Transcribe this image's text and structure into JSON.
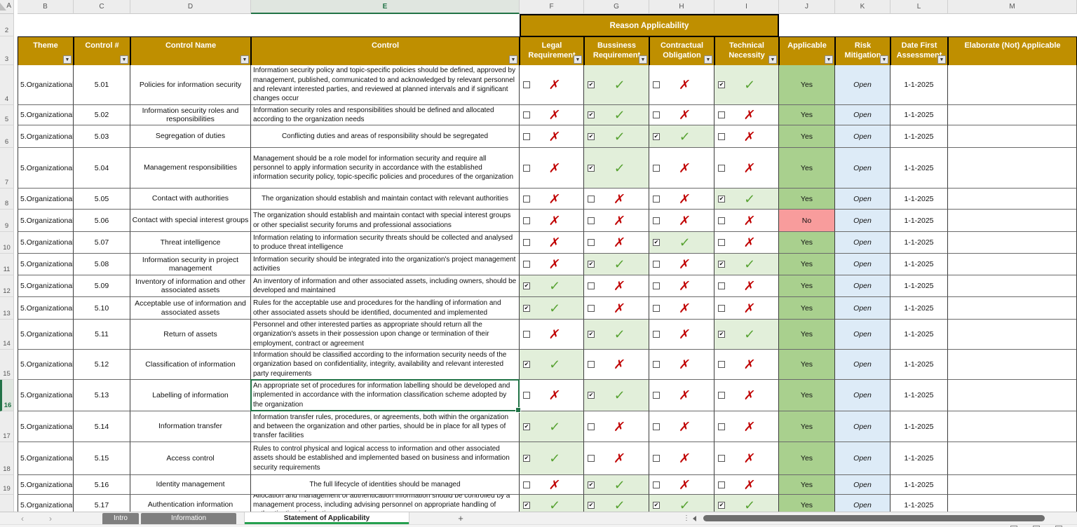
{
  "colors": {
    "header_gold": "#BF8F00",
    "checked_cell_green": "#E2EFDA",
    "applicable_yes_green": "#A9D08E",
    "applicable_no_red": "#F89C9C",
    "risk_blue": "#DDEBF7",
    "check_mark_green": "#55A12F",
    "cross_mark_red": "#C00000",
    "excel_green": "#217346",
    "active_tab_underline": "#26A04F"
  },
  "columns": [
    "A",
    "B",
    "C",
    "D",
    "E",
    "F",
    "G",
    "H",
    "I",
    "J",
    "K",
    "L",
    "M"
  ],
  "visible_row_numbers": [
    2,
    3,
    4,
    5,
    6,
    7,
    8,
    9,
    10,
    11,
    12,
    13,
    14,
    15,
    16,
    17,
    18,
    19
  ],
  "selection": {
    "column": "E",
    "row": 16
  },
  "table": {
    "group_header": "Reason Applicability",
    "headers": [
      {
        "id": "theme",
        "col": "B",
        "lines": [
          "Theme"
        ],
        "filter": true
      },
      {
        "id": "control_no",
        "col": "C",
        "lines": [
          "Control #"
        ],
        "filter": true
      },
      {
        "id": "control_name",
        "col": "D",
        "lines": [
          "Control Name"
        ],
        "filter": true
      },
      {
        "id": "control",
        "col": "E",
        "lines": [
          "Control"
        ],
        "filter": true
      },
      {
        "id": "legal",
        "col": "F",
        "lines": [
          "Legal",
          "Requirement"
        ],
        "filter": true
      },
      {
        "id": "business",
        "col": "G",
        "lines": [
          "Bussiness",
          "Requirement"
        ],
        "filter": true
      },
      {
        "id": "contractual",
        "col": "H",
        "lines": [
          "Contractual",
          "Obligation"
        ],
        "filter": true
      },
      {
        "id": "technical",
        "col": "I",
        "lines": [
          "Technical",
          "Necessity"
        ],
        "filter": true
      },
      {
        "id": "applicable",
        "col": "J",
        "lines": [
          "Applicable"
        ],
        "filter": true
      },
      {
        "id": "risk",
        "col": "K",
        "lines": [
          "Risk",
          "Mitigation"
        ],
        "filter": true
      },
      {
        "id": "date",
        "col": "L",
        "lines": [
          "Date First",
          "Assessment"
        ],
        "filter": true
      },
      {
        "id": "elaborate",
        "col": "M",
        "lines": [
          "Elaborate (Not) Applicable"
        ],
        "filter": false
      }
    ],
    "rows": [
      {
        "row": 4,
        "theme": "5.Organizational",
        "control_no": "5.01",
        "name": "Policies for information security",
        "control": "Information security policy and topic-specific policies should be defined, approved by management, published, communicated to and acknowledged by relevant personnel and relevant interested parties, and reviewed at planned intervals and if significant changes occur",
        "legal": false,
        "business": true,
        "contractual": false,
        "technical": true,
        "applicable": "Yes",
        "risk": "Open",
        "date": "1-1-2025",
        "elaborate": ""
      },
      {
        "row": 5,
        "theme": "5.Organizational",
        "control_no": "5.02",
        "name": "Information security roles and responsibilities",
        "control": "Information security roles and responsibilities should be defined and allocated according to the organization needs",
        "legal": false,
        "business": true,
        "contractual": false,
        "technical": false,
        "applicable": "Yes",
        "risk": "Open",
        "date": "1-1-2025",
        "elaborate": ""
      },
      {
        "row": 6,
        "theme": "5.Organizational",
        "control_no": "5.03",
        "name": "Segregation of duties",
        "control": "Conflicting duties and areas of responsibility should be segregated",
        "legal": false,
        "business": true,
        "contractual": true,
        "technical": false,
        "applicable": "Yes",
        "risk": "Open",
        "date": "1-1-2025",
        "elaborate": ""
      },
      {
        "row": 7,
        "theme": "5.Organizational",
        "control_no": "5.04",
        "name": "Management responsibilities",
        "control": "Management should be a role model for information security and require all personnel to apply information security in accordance with the established information security policy, topic-specific policies and procedures of the organization",
        "legal": false,
        "business": true,
        "contractual": false,
        "technical": false,
        "applicable": "Yes",
        "risk": "Open",
        "date": "1-1-2025",
        "elaborate": ""
      },
      {
        "row": 8,
        "theme": "5.Organizational",
        "control_no": "5.05",
        "name": "Contact with authorities",
        "control": "The organization should establish and maintain contact with relevant authorities",
        "legal": false,
        "business": false,
        "contractual": false,
        "technical": true,
        "applicable": "Yes",
        "risk": "Open",
        "date": "1-1-2025",
        "elaborate": ""
      },
      {
        "row": 9,
        "theme": "5.Organizational",
        "control_no": "5.06",
        "name": "Contact with special interest groups",
        "control": "The organization should establish and maintain contact with special interest groups or other specialist security forums and professional associations",
        "legal": false,
        "business": false,
        "contractual": false,
        "technical": false,
        "applicable": "No",
        "risk": "Open",
        "date": "1-1-2025",
        "elaborate": ""
      },
      {
        "row": 10,
        "theme": "5.Organizational",
        "control_no": "5.07",
        "name": "Threat intelligence",
        "control": "Information relating to information security threats should be collected and analysed to produce threat intelligence",
        "legal": false,
        "business": false,
        "contractual": true,
        "technical": false,
        "applicable": "Yes",
        "risk": "Open",
        "date": "1-1-2025",
        "elaborate": ""
      },
      {
        "row": 11,
        "theme": "5.Organizational",
        "control_no": "5.08",
        "name": "Information security in project management",
        "control": "Information security should be integrated into the organization's project management activities",
        "legal": false,
        "business": true,
        "contractual": false,
        "technical": true,
        "applicable": "Yes",
        "risk": "Open",
        "date": "1-1-2025",
        "elaborate": ""
      },
      {
        "row": 12,
        "theme": "5.Organizational",
        "control_no": "5.09",
        "name": "Inventory of information and other associated assets",
        "control": "An inventory of information and other associated assets, including owners, should be developed and maintained",
        "legal": true,
        "business": false,
        "contractual": false,
        "technical": false,
        "applicable": "Yes",
        "risk": "Open",
        "date": "1-1-2025",
        "elaborate": ""
      },
      {
        "row": 13,
        "theme": "5.Organizational",
        "control_no": "5.10",
        "name": "Acceptable use of information and associated assets",
        "control": "Rules for the acceptable use and procedures for the handling of information and other associated assets should be identified, documented and implemented",
        "legal": true,
        "business": false,
        "contractual": false,
        "technical": false,
        "applicable": "Yes",
        "risk": "Open",
        "date": "1-1-2025",
        "elaborate": ""
      },
      {
        "row": 14,
        "theme": "5.Organizational",
        "control_no": "5.11",
        "name": "Return of assets",
        "control": "Personnel and other interested parties as appropriate should return all the organization's assets in their possession upon change or termination of their employment, contract or agreement",
        "legal": false,
        "business": true,
        "contractual": false,
        "technical": true,
        "applicable": "Yes",
        "risk": "Open",
        "date": "1-1-2025",
        "elaborate": ""
      },
      {
        "row": 15,
        "theme": "5.Organizational",
        "control_no": "5.12",
        "name": "Classification of information",
        "control": "Information should be classified according to the information security needs of the organization based on confidentiality, integrity, availability and relevant interested party requirements",
        "legal": true,
        "business": false,
        "contractual": false,
        "technical": false,
        "applicable": "Yes",
        "risk": "Open",
        "date": "1-1-2025",
        "elaborate": ""
      },
      {
        "row": 16,
        "theme": "5.Organizational",
        "control_no": "5.13",
        "name": "Labelling of information",
        "control": "An appropriate set of procedures for information labelling should be developed and implemented in accordance with the information classification scheme adopted by the organization",
        "legal": false,
        "business": true,
        "contractual": false,
        "technical": false,
        "applicable": "Yes",
        "risk": "Open",
        "date": "1-1-2025",
        "elaborate": ""
      },
      {
        "row": 17,
        "theme": "5.Organizational",
        "control_no": "5.14",
        "name": "Information transfer",
        "control": "Information transfer rules, procedures, or agreements, both within the organization and between the organization and other parties, should be in place for all types of transfer facilities",
        "legal": true,
        "business": false,
        "contractual": false,
        "technical": false,
        "applicable": "Yes",
        "risk": "Open",
        "date": "1-1-2025",
        "elaborate": ""
      },
      {
        "row": 18,
        "theme": "5.Organizational",
        "control_no": "5.15",
        "name": "Access control",
        "control": "Rules to control physical and logical access to information and other associated assets should be established and implemented based on business and information security requirements",
        "legal": true,
        "business": false,
        "contractual": false,
        "technical": false,
        "applicable": "Yes",
        "risk": "Open",
        "date": "1-1-2025",
        "elaborate": ""
      },
      {
        "row": 19,
        "theme": "5.Organizational",
        "control_no": "5.16",
        "name": "Identity management",
        "control": "The full lifecycle of identities should be managed",
        "legal": false,
        "business": true,
        "contractual": false,
        "technical": false,
        "applicable": "Yes",
        "risk": "Open",
        "date": "1-1-2025",
        "elaborate": ""
      },
      {
        "row": 20,
        "theme": "5.Organizational",
        "control_no": "5.17",
        "name": "Authentication information",
        "control": "Allocation and management of authentication information should be controlled by a management process, including advising personnel on appropriate handling of authentication information",
        "legal": true,
        "business": true,
        "contractual": true,
        "technical": true,
        "applicable": "Yes",
        "risk": "Open",
        "date": "1-1-2025",
        "elaborate": ""
      }
    ]
  },
  "sheet_tabs": {
    "nav_prev": "‹",
    "nav_next": "›",
    "tabs": [
      {
        "label": "Intro",
        "active": false
      },
      {
        "label": "Information",
        "active": false
      },
      {
        "label": "Statement of Applicability",
        "active": true
      }
    ],
    "add_label": "+"
  },
  "marks": {
    "check": "✓",
    "cross": "✗",
    "checkbox_tick": "✔",
    "filter_arrow": "▼"
  }
}
